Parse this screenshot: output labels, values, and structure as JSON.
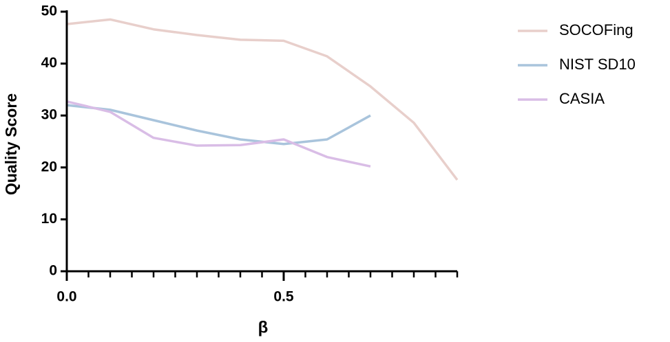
{
  "chart_data": {
    "type": "line",
    "x_label": "β",
    "y_label": "Quality Score",
    "x": [
      0,
      0.1,
      0.2,
      0.3,
      0.4,
      0.5,
      0.6,
      0.7,
      0.8,
      0.9
    ],
    "series": [
      {
        "name": "SOCOFing",
        "color": "#e8cfcb",
        "values": [
          47.6,
          48.5,
          46.6,
          45.5,
          44.6,
          44.4,
          41.4,
          35.6,
          28.6,
          17.6
        ]
      },
      {
        "name": "NIST SD10",
        "color": "#a9c4dc",
        "values": [
          32.0,
          31.1,
          29.1,
          27.1,
          25.4,
          24.5,
          25.4,
          30.0,
          null,
          null
        ]
      },
      {
        "name": "CASIA",
        "color": "#d9bde6",
        "values": [
          32.7,
          30.7,
          25.7,
          24.2,
          24.3,
          25.4,
          22.0,
          20.2,
          null,
          null
        ]
      }
    ],
    "xlim": [
      0,
      0.9
    ],
    "xticks": [
      {
        "value": 0,
        "label": "0.0"
      },
      0.5
    ],
    "xminorticks": [
      0.05,
      0.1,
      0.15,
      0.2,
      0.25,
      0.3,
      0.35,
      0.4,
      0.45,
      0.55,
      0.6,
      0.65,
      0.7,
      0.75,
      0.8,
      0.85,
      0.9
    ],
    "ylim": [
      0,
      50
    ],
    "yticks": [
      0,
      10,
      20,
      30,
      40,
      50
    ],
    "legend": "right"
  }
}
